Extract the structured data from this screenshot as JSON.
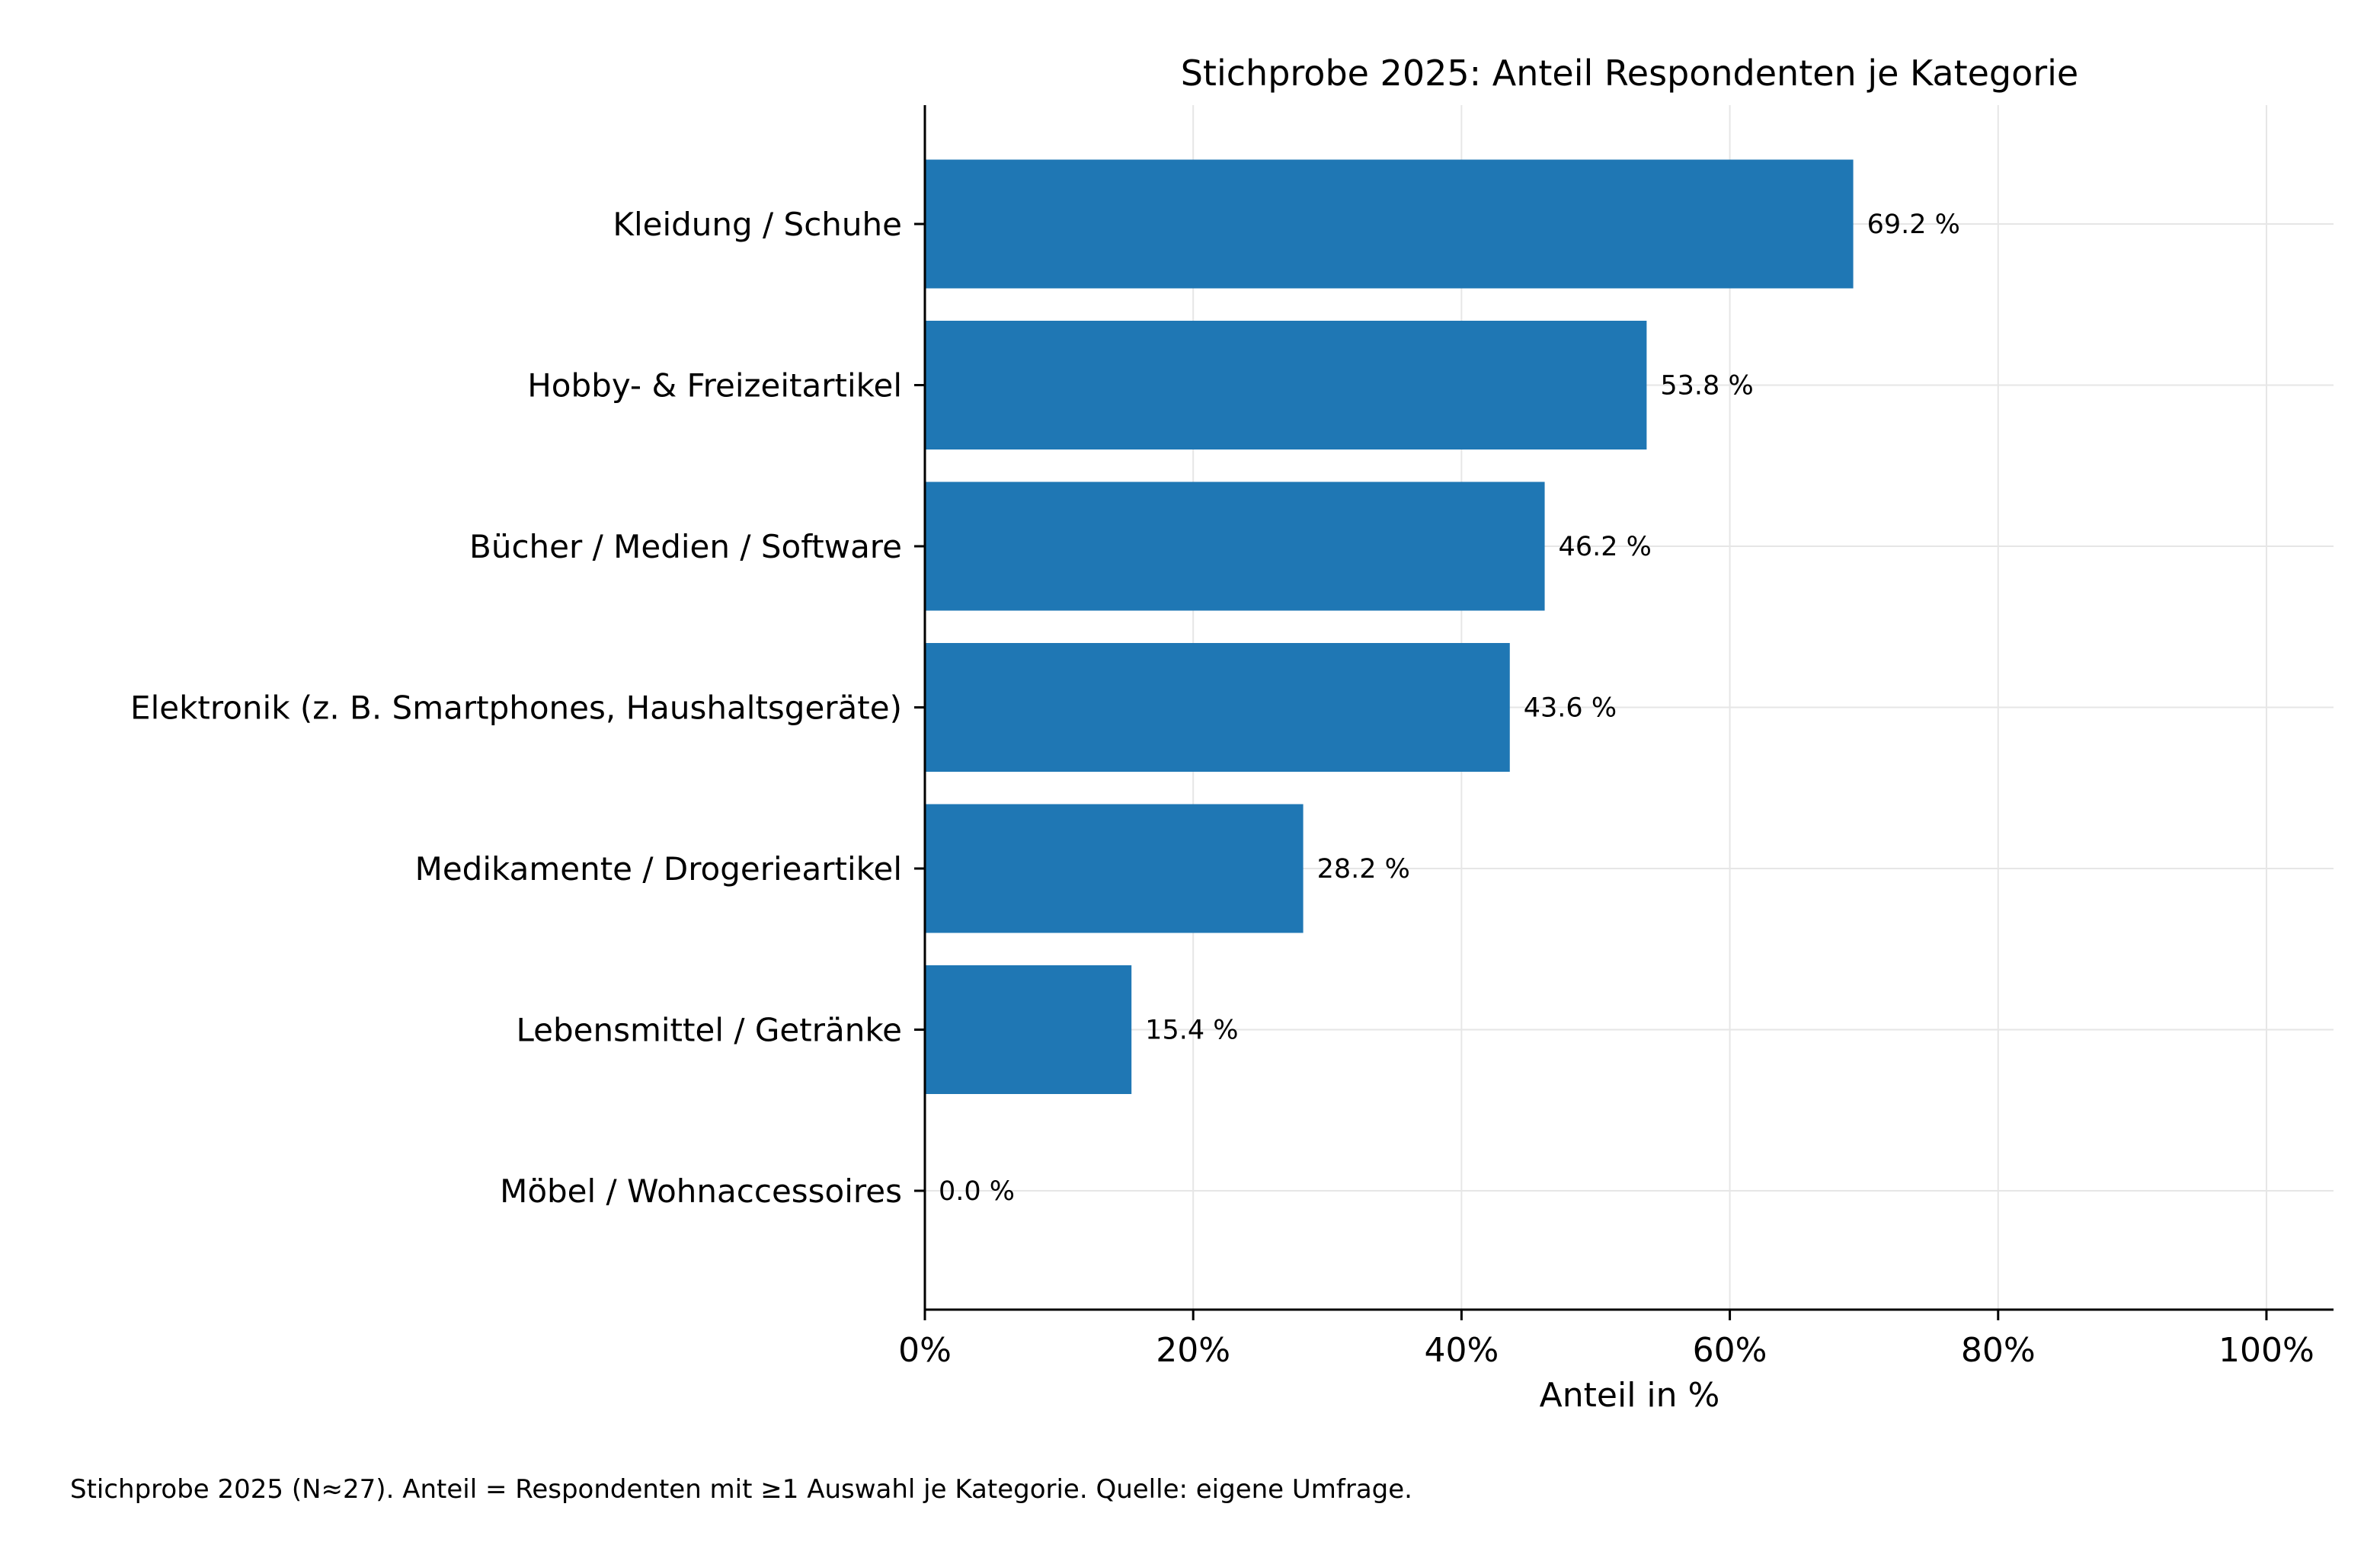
{
  "chart_data": {
    "type": "bar",
    "orientation": "horizontal",
    "title": "Stichprobe 2025: Anteil Respondenten je Kategorie",
    "xlabel": "Anteil in %",
    "ylabel": "",
    "xlim": [
      0,
      105
    ],
    "x_ticks": [
      0,
      20,
      40,
      60,
      80,
      100
    ],
    "x_tick_labels": [
      "0%",
      "20%",
      "40%",
      "60%",
      "80%",
      "100%"
    ],
    "grid": true,
    "bar_color": "#1f77b4",
    "categories": [
      "Kleidung / Schuhe",
      "Hobby- & Freizeitartikel",
      "Bücher / Medien / Software",
      "Elektronik (z. B. Smartphones, Haushaltsgeräte)",
      "Medikamente / Drogerieartikel",
      "Lebensmittel / Getränke",
      "Möbel / Wohnaccessoires"
    ],
    "values": [
      69.2,
      53.8,
      46.2,
      43.6,
      28.2,
      15.4,
      0.0
    ],
    "data_labels": [
      "69.2 %",
      "53.8 %",
      "46.2 %",
      "43.6 %",
      "28.2 %",
      "15.4 %",
      "0.0 %"
    ],
    "footnote": "Stichprobe 2025 (N≈27). Anteil = Respondenten mit ≥1 Auswahl je Kategorie. Quelle: eigene Umfrage."
  }
}
